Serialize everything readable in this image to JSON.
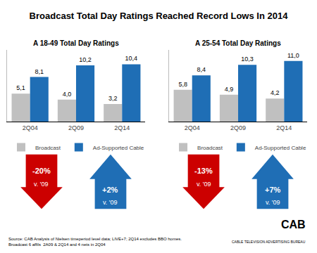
{
  "title": "Broadcast Total Day Ratings Reached Record Lows In 2014",
  "annotations": [
    "Source: CAB Analysis of Nielsen timeperiod level data; LIVE+7; 2Q14 excludes BBO homes.\nBroadcast 6 affils  2A09 & 2Q14 and 4 nets in 2Q04",
    "CAB",
    "CABLE TELEVISION ADVERTISING BUREAU"
  ],
  "chart_data": [
    {
      "type": "bar",
      "title": "A 18-49 Total Day Ratings",
      "categories": [
        "2Q04",
        "2Q09",
        "2Q14"
      ],
      "series": [
        {
          "name": "Broadcast",
          "color": "#c0c0c0",
          "values": [
            5.1,
            4.0,
            3.2
          ],
          "value_labels": [
            "5,1",
            "4,0",
            "3,2"
          ]
        },
        {
          "name": "Ad-Supported Cable",
          "color": "#1f6eb5",
          "values": [
            8.1,
            10.2,
            10.4
          ],
          "value_labels": [
            "8,1",
            "10,2",
            "10,4"
          ]
        }
      ],
      "ylim": [
        0,
        13
      ],
      "grid": false,
      "tick_labels": "x",
      "data_labels": true,
      "legend": "bottom",
      "annotations": [
        {
          "text": [
            "-20%",
            "v. '09"
          ],
          "color": "#cc0000",
          "marker": "arrow-down"
        },
        {
          "text": [
            "+2%",
            "v. '09"
          ],
          "color": "#1f6eb5",
          "marker": "arrow-up"
        }
      ]
    },
    {
      "type": "bar",
      "title": "A 25-54 Total Day Ratings",
      "categories": [
        "2Q04",
        "2Q09",
        "2Q14"
      ],
      "series": [
        {
          "name": "Broadcast",
          "color": "#c0c0c0",
          "values": [
            5.8,
            4.9,
            4.2
          ],
          "value_labels": [
            "5,8",
            "4,9",
            "4,2"
          ]
        },
        {
          "name": "Ad-Supported Cable",
          "color": "#1f6eb5",
          "values": [
            8.4,
            10.3,
            11.0
          ],
          "value_labels": [
            "8,4",
            "10,3",
            "11,0"
          ]
        }
      ],
      "ylim": [
        0,
        13
      ],
      "grid": false,
      "tick_labels": "x",
      "data_labels": true,
      "legend": "bottom",
      "annotations": [
        {
          "text": [
            "-13%",
            "v. '09"
          ],
          "color": "#cc0000",
          "marker": "arrow-down"
        },
        {
          "text": [
            "+7%",
            "v. '09"
          ],
          "color": "#1f6eb5",
          "marker": "arrow-up"
        }
      ]
    }
  ]
}
